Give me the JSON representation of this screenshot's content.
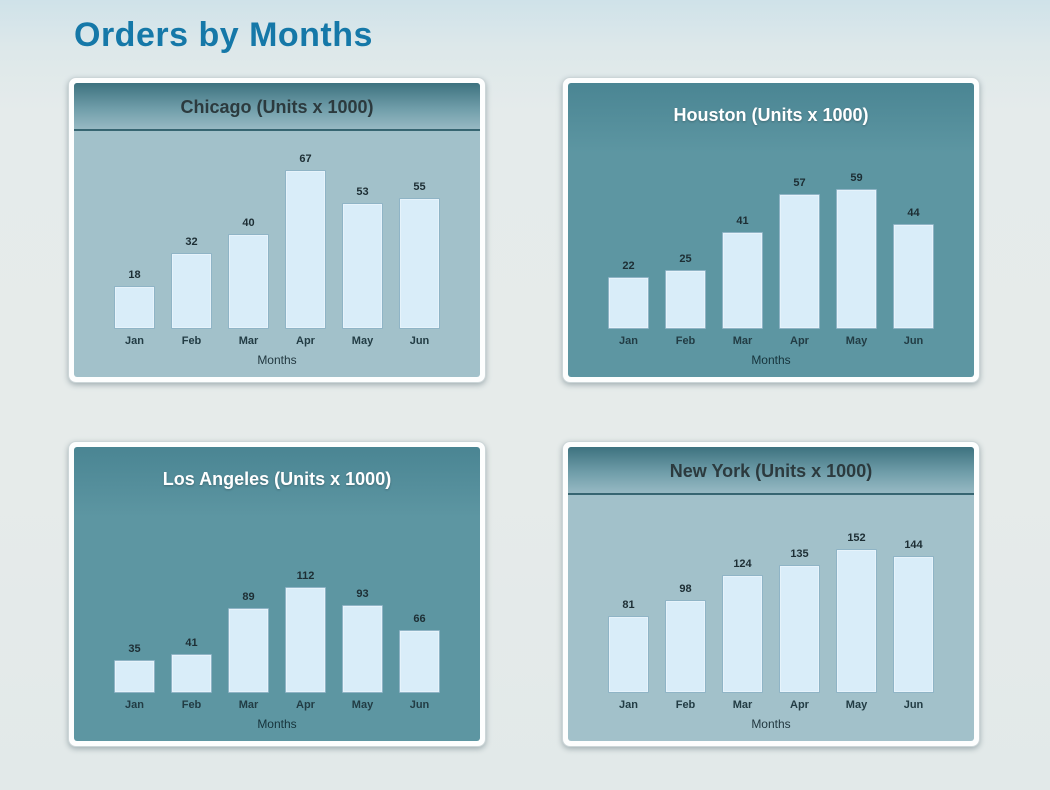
{
  "page": {
    "title": "Orders by Months"
  },
  "colors": {
    "page_title": "#1578a8",
    "light_panel_body": "#a2c1ca",
    "dark_panel_body": "#5d96a2",
    "header_gradient_top": "#3d727f",
    "bar_fill": "#d9edf9",
    "bar_border": "#8fb4c6",
    "label_dark": "#1d2e34",
    "dark_panel_title": "#ffffff"
  },
  "chart_data": [
    {
      "type": "bar",
      "title": "Chicago (Units x 1000)",
      "categories": [
        "Jan",
        "Feb",
        "Mar",
        "Apr",
        "May",
        "Jun"
      ],
      "values": [
        18,
        32,
        40,
        67,
        53,
        55
      ],
      "xlabel": "Months",
      "ylabel": "",
      "ylim": [
        0,
        80
      ],
      "grid": false,
      "legend": "none",
      "panel_style": "light-body-gradient-header"
    },
    {
      "type": "bar",
      "title": "Houston (Units x 1000)",
      "categories": [
        "Jan",
        "Feb",
        "Mar",
        "Apr",
        "May",
        "Jun"
      ],
      "values": [
        22,
        25,
        41,
        57,
        59,
        44
      ],
      "xlabel": "Months",
      "ylabel": "",
      "ylim": [
        0,
        80
      ],
      "grid": false,
      "legend": "none",
      "panel_style": "solid-teal-white-title"
    },
    {
      "type": "bar",
      "title": "Los Angeles (Units x 1000)",
      "categories": [
        "Jan",
        "Feb",
        "Mar",
        "Apr",
        "May",
        "Jun"
      ],
      "values": [
        35,
        41,
        89,
        112,
        93,
        66
      ],
      "xlabel": "Months",
      "ylabel": "",
      "ylim": [
        0,
        200
      ],
      "grid": false,
      "legend": "none",
      "panel_style": "solid-teal-white-title"
    },
    {
      "type": "bar",
      "title": "New York (Units x 1000)",
      "categories": [
        "Jan",
        "Feb",
        "Mar",
        "Apr",
        "May",
        "Jun"
      ],
      "values": [
        81,
        98,
        124,
        135,
        152,
        144
      ],
      "xlabel": "Months",
      "ylabel": "",
      "ylim": [
        0,
        200
      ],
      "grid": false,
      "legend": "none",
      "panel_style": "light-body-gradient-header"
    }
  ]
}
